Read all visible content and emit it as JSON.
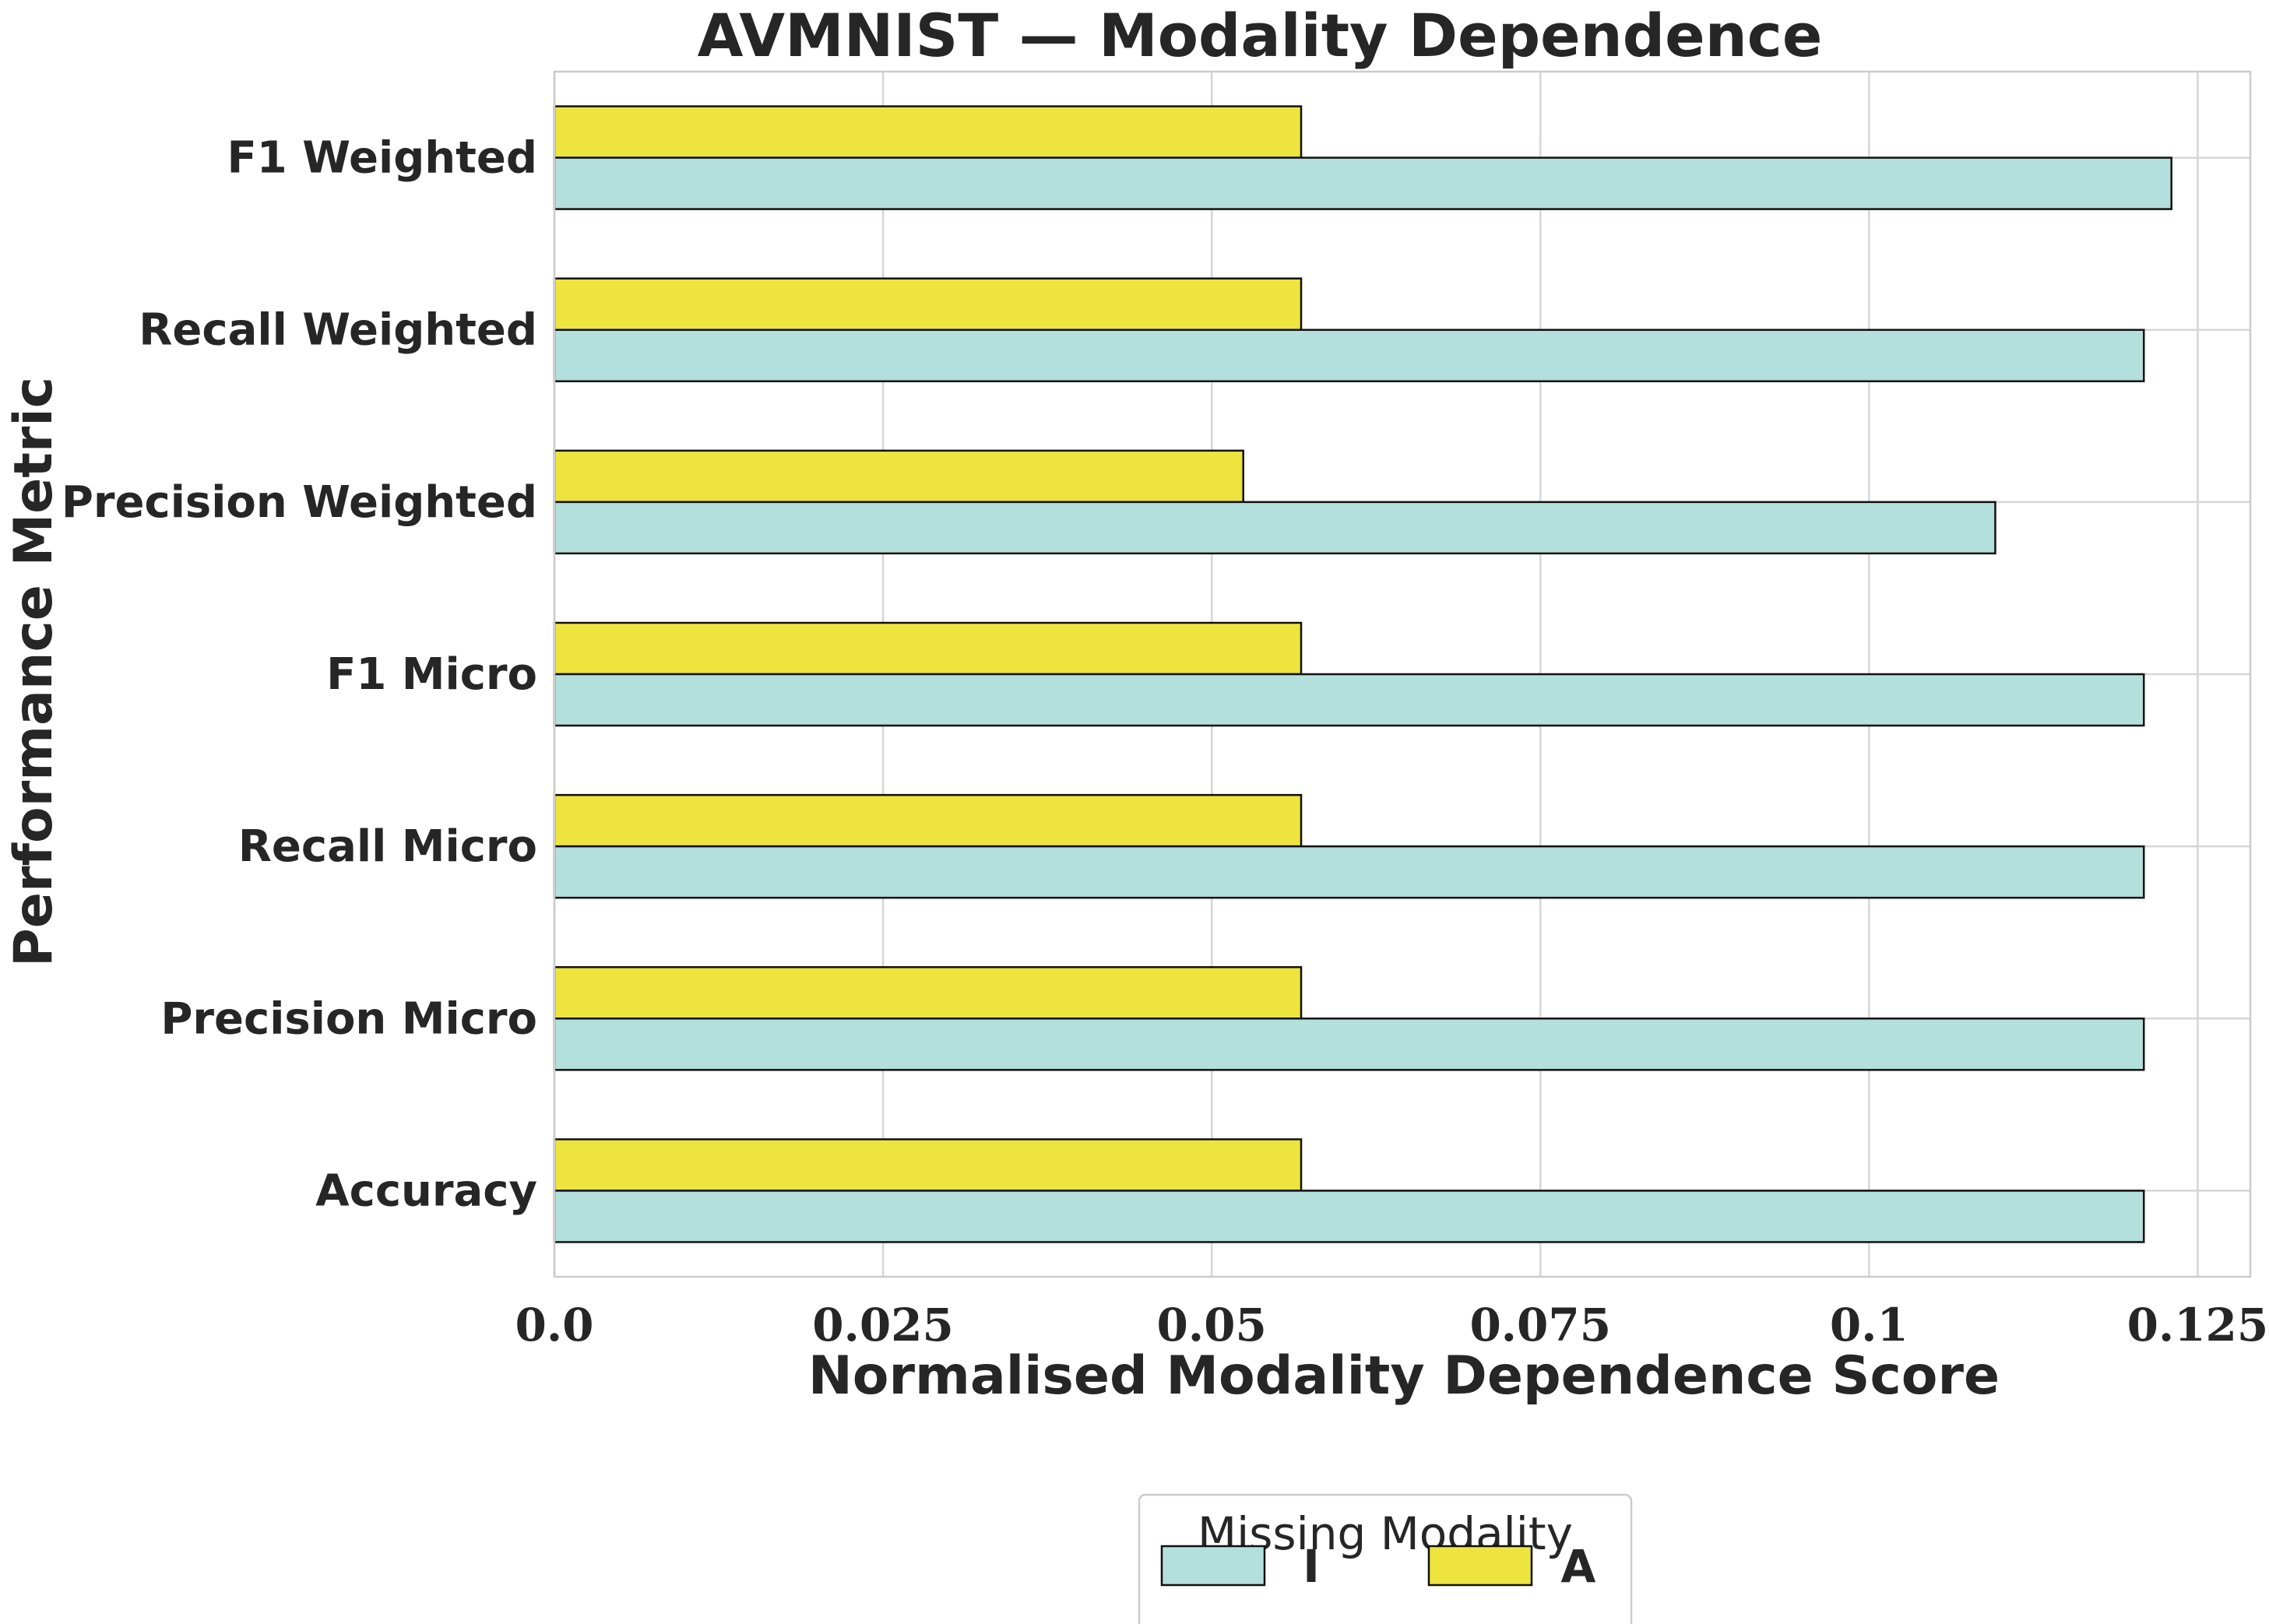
{
  "chart_data": {
    "type": "bar",
    "orientation": "horizontal",
    "title": "AVMNIST — Modality Dependence",
    "xlabel": "Normalised Modality Dependence Score",
    "ylabel": "Performance Metric",
    "categories": [
      "F1 Weighted",
      "Recall Weighted",
      "Precision Weighted",
      "F1 Micro",
      "Recall Micro",
      "Precision Micro",
      "Accuracy"
    ],
    "series": [
      {
        "name": "I",
        "color": "#b3e0dc",
        "values": [
          0.123,
          0.1209,
          0.1096,
          0.1209,
          0.1209,
          0.1209,
          0.1209
        ]
      },
      {
        "name": "A",
        "color": "#eee43e",
        "values": [
          0.0568,
          0.0568,
          0.0524,
          0.0568,
          0.0568,
          0.0568,
          0.0568
        ]
      }
    ],
    "xticks": [
      "0.0",
      "0.025",
      "0.05",
      "0.075",
      "0.1",
      "0.125"
    ],
    "xtick_values": [
      0,
      0.025,
      0.05,
      0.075,
      0.1,
      0.125
    ],
    "xlim": [
      0,
      0.129
    ],
    "grid": true,
    "legend": {
      "title": "Missing Modality",
      "placement": "bottom-center"
    }
  }
}
